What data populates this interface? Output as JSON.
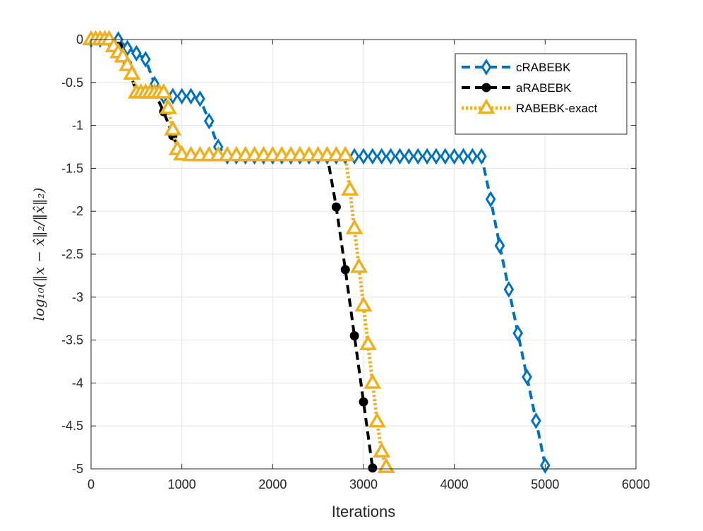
{
  "chart_data": {
    "type": "line",
    "title": "",
    "xlabel": "Iterations",
    "ylabel": "log₁₀(‖x − x̂‖₂/‖x̂‖₂)",
    "xlim": [
      0,
      6000
    ],
    "ylim": [
      -5,
      0
    ],
    "xticks": [
      0,
      1000,
      2000,
      3000,
      4000,
      5000,
      6000
    ],
    "xtick_labels": [
      "0",
      "1000",
      "2000",
      "3000",
      "4000",
      "5000",
      "6000"
    ],
    "yticks": [
      0,
      -0.5,
      -1,
      -1.5,
      -2,
      -2.5,
      -3,
      -3.5,
      -4,
      -4.5,
      -5
    ],
    "ytick_labels": [
      "0",
      "-0.5",
      "-1",
      "-1.5",
      "-2",
      "-2.5",
      "-3",
      "-3.5",
      "-4",
      "-4.5",
      "-5"
    ],
    "grid": true,
    "legend_position": "top-right",
    "series": [
      {
        "name": "cRABEBK",
        "color": "#0072BD",
        "line_style": "dashed",
        "marker": "diamond",
        "x": [
          0,
          100,
          200,
          300,
          400,
          500,
          600,
          700,
          800,
          900,
          1000,
          1100,
          1200,
          1300,
          1400,
          1500,
          1600,
          1700,
          1800,
          1900,
          2000,
          2100,
          2200,
          2300,
          2400,
          2500,
          2600,
          2700,
          2800,
          2900,
          3000,
          3100,
          3200,
          3300,
          3400,
          3500,
          3600,
          3700,
          3800,
          3900,
          4000,
          4100,
          4200,
          4300,
          4400,
          4500,
          4600,
          4700,
          4800,
          4900,
          5000
        ],
        "y": [
          0,
          0,
          0,
          0,
          -0.1,
          -0.16,
          -0.23,
          -0.52,
          -0.66,
          -0.66,
          -0.66,
          -0.66,
          -0.69,
          -0.95,
          -1.25,
          -1.36,
          -1.36,
          -1.36,
          -1.36,
          -1.36,
          -1.36,
          -1.36,
          -1.36,
          -1.36,
          -1.36,
          -1.36,
          -1.36,
          -1.36,
          -1.36,
          -1.36,
          -1.36,
          -1.36,
          -1.36,
          -1.36,
          -1.36,
          -1.36,
          -1.36,
          -1.36,
          -1.36,
          -1.36,
          -1.36,
          -1.36,
          -1.36,
          -1.36,
          -1.86,
          -2.4,
          -2.91,
          -3.42,
          -3.93,
          -4.44,
          -4.96
        ]
      },
      {
        "name": "aRABEBK",
        "color": "#000000",
        "line_style": "dashed",
        "marker": "circle",
        "x": [
          0,
          100,
          200,
          300,
          400,
          500,
          600,
          700,
          800,
          900,
          1000,
          1100,
          1200,
          1300,
          1400,
          1500,
          1600,
          1700,
          1800,
          1900,
          2000,
          2100,
          2200,
          2300,
          2400,
          2500,
          2600,
          2700,
          2800,
          2900,
          3000,
          3100
        ],
        "y": [
          0,
          0,
          0,
          -0.08,
          -0.28,
          -0.62,
          -0.62,
          -0.62,
          -0.84,
          -1.12,
          -1.35,
          -1.35,
          -1.35,
          -1.35,
          -1.35,
          -1.35,
          -1.35,
          -1.35,
          -1.35,
          -1.35,
          -1.35,
          -1.35,
          -1.35,
          -1.35,
          -1.35,
          -1.35,
          -1.35,
          -1.95,
          -2.68,
          -3.45,
          -4.22,
          -4.99
        ]
      },
      {
        "name": "RABEBK-exact",
        "color": "#EDB120",
        "line_style": "dotted",
        "marker": "triangle",
        "x": [
          0,
          50,
          100,
          150,
          200,
          250,
          300,
          350,
          400,
          450,
          500,
          550,
          600,
          650,
          700,
          750,
          800,
          850,
          900,
          950,
          1000,
          1100,
          1200,
          1300,
          1400,
          1500,
          1600,
          1700,
          1800,
          1900,
          2000,
          2100,
          2200,
          2300,
          2400,
          2500,
          2600,
          2700,
          2800,
          2850,
          2900,
          2950,
          3000,
          3050,
          3100,
          3150,
          3200,
          3250
        ],
        "y": [
          0,
          0,
          0,
          0,
          0,
          -0.08,
          -0.15,
          -0.2,
          -0.3,
          -0.4,
          -0.62,
          -0.62,
          -0.62,
          -0.62,
          -0.62,
          -0.62,
          -0.62,
          -0.8,
          -1.05,
          -1.28,
          -1.34,
          -1.35,
          -1.35,
          -1.35,
          -1.35,
          -1.35,
          -1.35,
          -1.35,
          -1.35,
          -1.35,
          -1.35,
          -1.35,
          -1.35,
          -1.35,
          -1.35,
          -1.35,
          -1.35,
          -1.35,
          -1.35,
          -1.75,
          -2.2,
          -2.65,
          -3.1,
          -3.55,
          -4.0,
          -4.45,
          -4.8,
          -4.98
        ]
      }
    ]
  }
}
